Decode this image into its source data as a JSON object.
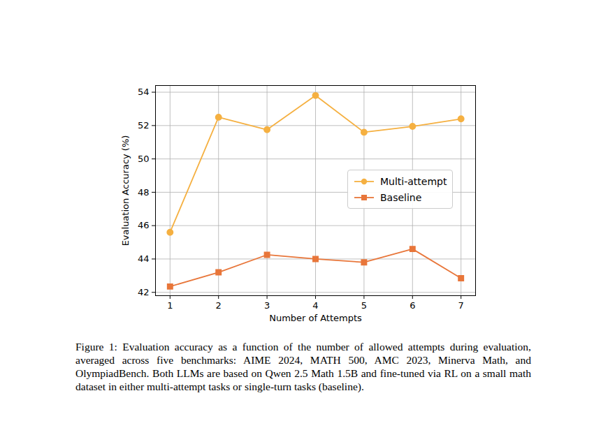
{
  "chart_data": {
    "type": "line",
    "xlabel": "Number of Attempts",
    "ylabel": "Evaluation Accuracy (%)",
    "caption": "Figure 1: Evaluation accuracy as a function of the number of allowed attempts during evaluation, averaged across five benchmarks: AIME 2024, MATH 500, AMC 2023, Minerva Math, and OlympiadBench. Both LLMs are based on Qwen 2.5 Math 1.5B and fine-tuned via RL on a small math dataset in either multi-attempt tasks or single-turn tasks (baseline).",
    "x": [
      1,
      2,
      3,
      4,
      5,
      6,
      7
    ],
    "series": [
      {
        "name": "Multi-attempt",
        "color": "#f5b041",
        "marker": "circle",
        "values": [
          45.6,
          52.5,
          51.75,
          53.8,
          51.6,
          51.95,
          52.4
        ]
      },
      {
        "name": "Baseline",
        "color": "#e8763a",
        "marker": "square",
        "values": [
          42.35,
          43.2,
          44.25,
          44.0,
          43.8,
          44.6,
          42.85
        ]
      }
    ],
    "xlim": [
      0.7,
      7.3
    ],
    "xticks": [
      1,
      2,
      3,
      4,
      5,
      6,
      7
    ],
    "ylim": [
      41.8,
      54.4
    ],
    "yticks": [
      42,
      44,
      46,
      48,
      50,
      52,
      54
    ],
    "grid": true,
    "legend": "right"
  }
}
